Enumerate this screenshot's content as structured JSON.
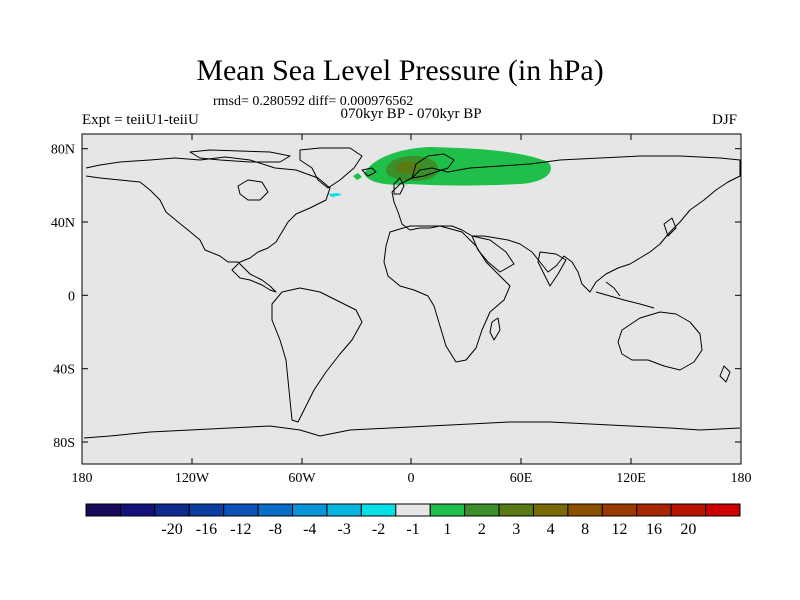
{
  "header": {
    "title": "Mean Sea Level Pressure (in hPa)",
    "stats": "rmsd= 0.280592 diff= 0.000976562",
    "subtitle": "070kyr BP - 070kyr BP",
    "experiment": "Expt = teiiU1-teiiU",
    "season": "DJF"
  },
  "axes": {
    "lat_labels": [
      "80N",
      "40N",
      "0",
      "40S",
      "80S"
    ],
    "lon_labels": [
      "180",
      "120W",
      "60W",
      "0",
      "60E",
      "120E",
      "180"
    ]
  },
  "colorbar": {
    "labels": [
      "-20",
      "-16",
      "-12",
      "-8",
      "-4",
      "-3",
      "-2",
      "-1",
      "1",
      "2",
      "3",
      "4",
      "8",
      "12",
      "16",
      "20"
    ],
    "colors": [
      "#1a0a5c",
      "#12127a",
      "#0d2a8c",
      "#0b3da0",
      "#0a52b5",
      "#0a6ec8",
      "#0a95d8",
      "#06b5e0",
      "#05e0e6",
      "#e6e6e6",
      "#1fbf4a",
      "#3a8f28",
      "#5a7a14",
      "#7a6a05",
      "#8a5000",
      "#9a3a00",
      "#a82600",
      "#b81400",
      "#cc0000"
    ]
  },
  "map": {
    "background": "#e6e6e6",
    "anomaly_colors": {
      "positive_1": "#1fbf4a",
      "positive_2": "#3a8f28",
      "positive_3": "#5a7a14",
      "negative_1": "#05e0e6"
    }
  }
}
